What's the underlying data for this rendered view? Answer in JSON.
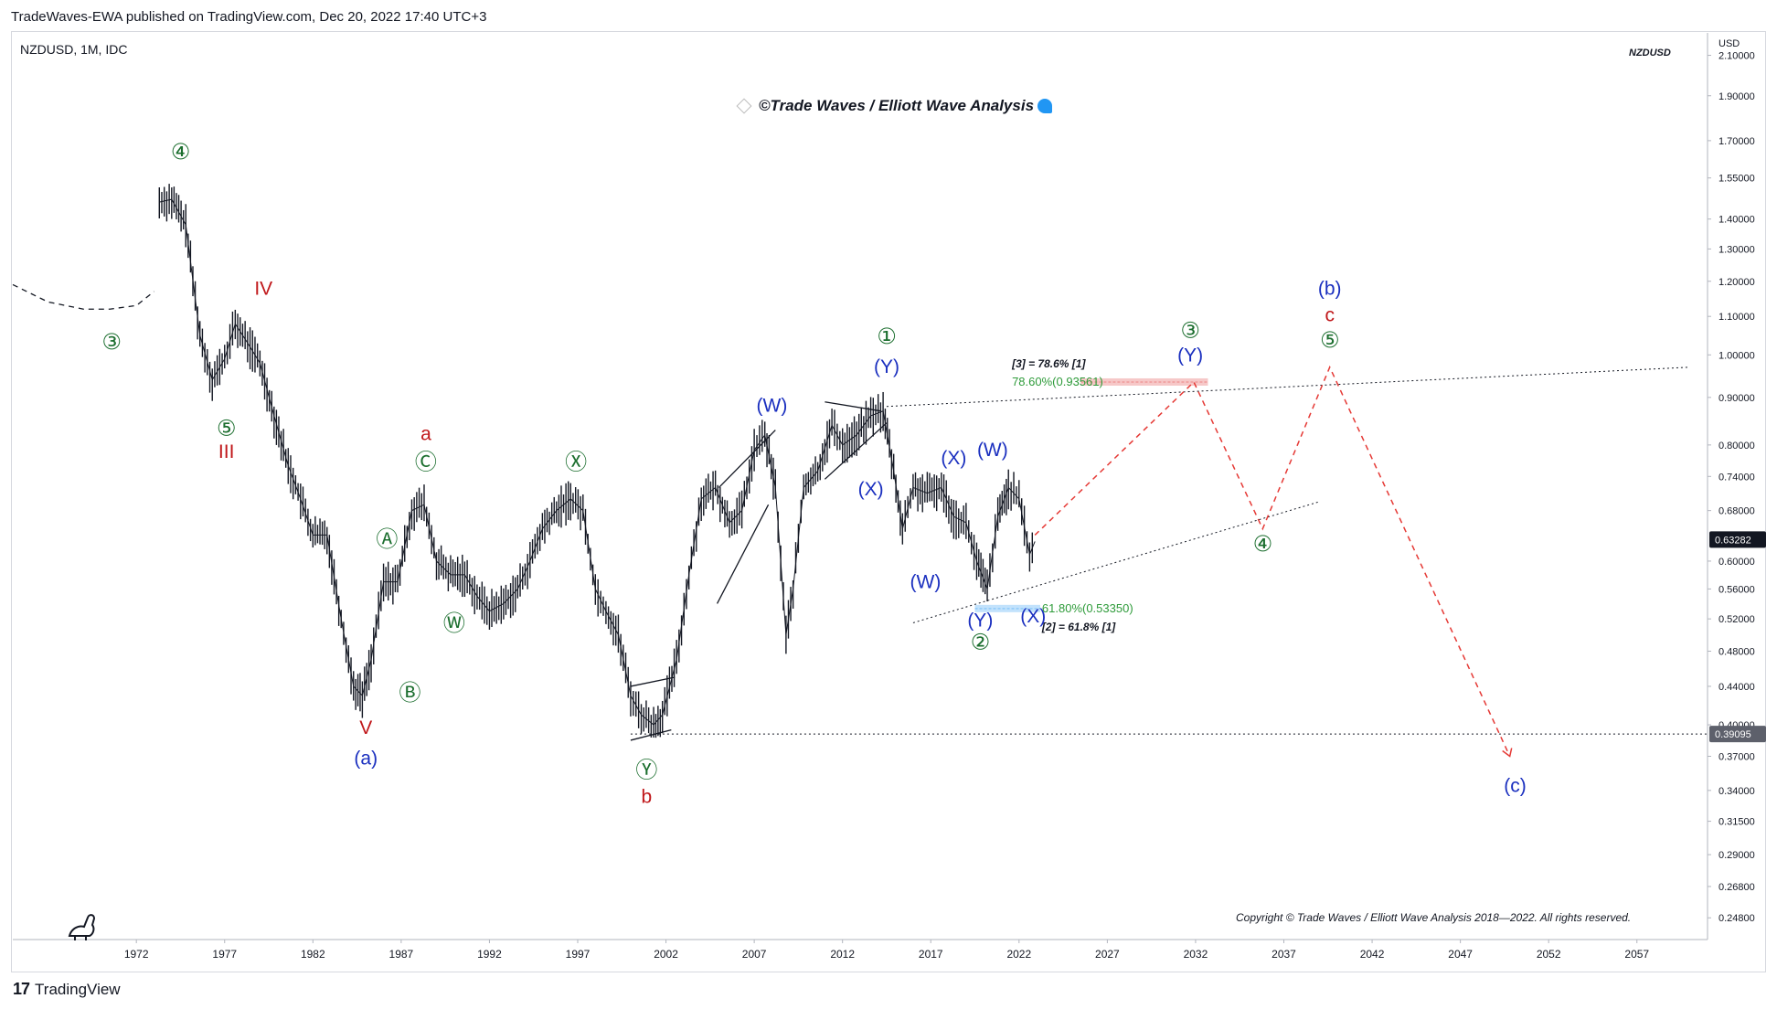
{
  "header": {
    "published_text": "TradeWaves-EWA published on TradingView.com, Dec 20, 2022 17:40 UTC+3"
  },
  "chart_header": {
    "symbol": "NZDUSD, 1M, IDC",
    "pane_tag": "NZDUSD",
    "currency": "USD"
  },
  "watermark": {
    "title": "©Trade Waves / Elliott Wave Analysis"
  },
  "copyright": "Copyright © Trade Waves / Elliott Wave Analysis 2018—2022. All rights reserved.",
  "footer": {
    "brand": "TradingView"
  },
  "colors": {
    "green": "#1b6e2e",
    "blue": "#1a2fbf",
    "red": "#c0171a",
    "dashed_projection": "#e53935",
    "candles": "#131722",
    "price_tag_bg": "#131722",
    "support_tag_bg": "#5d606b",
    "fib_green": "#2e9b3a"
  },
  "chart_data": {
    "type": "line",
    "title": "NZDUSD, 1M, IDC",
    "xlabel": "",
    "ylabel": "USD",
    "scale": "log",
    "x_ticks": [
      "1972",
      "1977",
      "1982",
      "1987",
      "1992",
      "1997",
      "2002",
      "2007",
      "2012",
      "2017",
      "2022",
      "2027",
      "2032",
      "2037",
      "2042",
      "2047",
      "2052",
      "2057"
    ],
    "y_ticks": [
      "2.10000",
      "1.90000",
      "1.70000",
      "1.55000",
      "1.40000",
      "1.30000",
      "1.20000",
      "1.10000",
      "1.00000",
      "0.90000",
      "0.80000",
      "0.74000",
      "0.68000",
      "0.60000",
      "0.56000",
      "0.52000",
      "0.48000",
      "0.44000",
      "0.40000",
      "0.37000",
      "0.34000",
      "0.31500",
      "0.29000",
      "0.26800",
      "0.24800"
    ],
    "ylim": [
      0.235,
      2.22
    ],
    "xlim": [
      1965,
      2061
    ],
    "price_tags": [
      {
        "label": "0.63282",
        "value": 0.63282
      },
      {
        "label": "0.39095",
        "value": 0.39095
      }
    ],
    "series": [
      {
        "name": "",
        "x": [
          1973.3,
          1974.0,
          1974.8,
          1975.6,
          1976.3,
          1977.0,
          1977.6,
          1978.3,
          1979.0,
          1979.8,
          1980.6,
          1981.3,
          1982.0,
          1982.8,
          1983.6,
          1984.3,
          1984.8,
          1985.3,
          1986.0,
          1986.8,
          1987.6,
          1988.3,
          1989.0,
          1989.8,
          1990.6,
          1991.3,
          1992.0,
          1992.8,
          1993.6,
          1994.3,
          1995.0,
          1995.8,
          1996.6,
          1997.3,
          1998.0,
          1998.6,
          1999.3,
          2000.0,
          2000.6,
          2001.3,
          2001.8,
          2002.6,
          2003.3,
          2004.0,
          2004.8,
          2005.6,
          2006.3,
          2007.0,
          2007.6,
          2008.2,
          2008.8,
          2009.2,
          2009.8,
          2010.6,
          2011.4,
          2012.0,
          2012.8,
          2013.6,
          2014.3,
          2014.9,
          2015.4,
          2016.0,
          2016.8,
          2017.6,
          2018.3,
          2019.0,
          2019.6,
          2020.2,
          2020.8,
          2021.4,
          2022.0,
          2022.6,
          2022.9
        ],
        "y": [
          1.46,
          1.47,
          1.38,
          1.05,
          0.94,
          0.99,
          1.08,
          1.03,
          0.98,
          0.86,
          0.76,
          0.7,
          0.64,
          0.64,
          0.52,
          0.44,
          0.43,
          0.47,
          0.57,
          0.57,
          0.68,
          0.69,
          0.6,
          0.58,
          0.58,
          0.55,
          0.53,
          0.54,
          0.56,
          0.6,
          0.65,
          0.68,
          0.7,
          0.68,
          0.56,
          0.53,
          0.5,
          0.43,
          0.41,
          0.4,
          0.41,
          0.47,
          0.58,
          0.7,
          0.72,
          0.66,
          0.68,
          0.79,
          0.82,
          0.72,
          0.5,
          0.56,
          0.72,
          0.75,
          0.84,
          0.8,
          0.82,
          0.86,
          0.87,
          0.75,
          0.65,
          0.72,
          0.71,
          0.72,
          0.67,
          0.66,
          0.6,
          0.56,
          0.67,
          0.72,
          0.7,
          0.61,
          0.63
        ]
      }
    ],
    "dashed_curve": {
      "x": [
        1965,
        1967,
        1969,
        1970.5,
        1972,
        1973
      ],
      "y": [
        1.19,
        1.14,
        1.12,
        1.12,
        1.13,
        1.17
      ]
    },
    "projection": {
      "x": [
        2022.9,
        2031.9,
        2035.8,
        2039.6,
        2049.8
      ],
      "y": [
        0.64,
        0.935,
        0.65,
        0.97,
        0.37
      ]
    },
    "trendlines": [
      {
        "x": [
          2014.5,
          2060
        ],
        "y": [
          0.88,
          0.97
        ],
        "style": "dotted"
      },
      {
        "x": [
          2016,
          2039
        ],
        "y": [
          0.515,
          0.695
        ],
        "style": "dotted"
      },
      {
        "x": [
          2000,
          2061
        ],
        "y": [
          0.39095,
          0.39095
        ],
        "style": "dotted"
      },
      {
        "x": [
          2005,
          2008.2
        ],
        "y": [
          0.72,
          0.83
        ],
        "style": "solid"
      },
      {
        "x": [
          2004.9,
          2007.8
        ],
        "y": [
          0.54,
          0.69
        ],
        "style": "solid"
      },
      {
        "x": [
          2011,
          2014.2
        ],
        "y": [
          0.89,
          0.87
        ],
        "style": "solid"
      },
      {
        "x": [
          2011,
          2014.5
        ],
        "y": [
          0.735,
          0.845
        ],
        "style": "solid"
      },
      {
        "x": [
          2000,
          2002.5
        ],
        "y": [
          0.44,
          0.45
        ],
        "style": "solid"
      },
      {
        "x": [
          2000,
          2002.3
        ],
        "y": [
          0.385,
          0.395
        ],
        "style": "solid"
      }
    ],
    "fib_zones": [
      {
        "x": [
          2025.5,
          2032.7
        ],
        "y": 0.935,
        "label": "78.60%(0.93561)",
        "note": "[3] = 78.6% [1]",
        "color": "#ef9a9a"
      },
      {
        "x": [
          2019.5,
          2023.2
        ],
        "y": 0.5335,
        "label": "61.80%(0.53350)",
        "note": "[2] = 61.8% [1]",
        "color": "#90caf9"
      }
    ],
    "wave_labels": [
      {
        "text": "④",
        "x": 1974.5,
        "y": 1.65,
        "color": "green"
      },
      {
        "text": "③",
        "x": 1970.6,
        "y": 1.03,
        "color": "green"
      },
      {
        "text": "IV",
        "x": 1979.2,
        "y": 1.175,
        "color": "red"
      },
      {
        "text": "⑤",
        "x": 1977.1,
        "y": 0.832,
        "color": "green"
      },
      {
        "text": "III",
        "x": 1977.1,
        "y": 0.785,
        "color": "red"
      },
      {
        "text": "a",
        "x": 1988.4,
        "y": 0.82,
        "color": "red"
      },
      {
        "text": "Ⓒ",
        "x": 1988.4,
        "y": 0.765,
        "color": "green"
      },
      {
        "text": "Ⓐ",
        "x": 1986.2,
        "y": 0.632,
        "color": "green"
      },
      {
        "text": "Ⓦ",
        "x": 1990.0,
        "y": 0.513,
        "color": "green"
      },
      {
        "text": "Ⓑ",
        "x": 1987.5,
        "y": 0.432,
        "color": "green"
      },
      {
        "text": "V",
        "x": 1985.0,
        "y": 0.396,
        "color": "red"
      },
      {
        "text": "(a)",
        "x": 1985.0,
        "y": 0.367,
        "color": "blue"
      },
      {
        "text": "Ⓧ",
        "x": 1996.9,
        "y": 0.765,
        "color": "green"
      },
      {
        "text": "Ⓨ",
        "x": 2000.9,
        "y": 0.357,
        "color": "green"
      },
      {
        "text": "b",
        "x": 2000.9,
        "y": 0.334,
        "color": "red"
      },
      {
        "text": "(W)",
        "x": 2008.0,
        "y": 0.88,
        "color": "blue"
      },
      {
        "text": "①",
        "x": 2014.5,
        "y": 1.045,
        "color": "green"
      },
      {
        "text": "(Y)",
        "x": 2014.5,
        "y": 0.968,
        "color": "blue"
      },
      {
        "text": "(X)",
        "x": 2013.6,
        "y": 0.715,
        "color": "blue"
      },
      {
        "text": "(X)",
        "x": 2018.3,
        "y": 0.772,
        "color": "blue"
      },
      {
        "text": "(W)",
        "x": 2020.5,
        "y": 0.788,
        "color": "blue"
      },
      {
        "text": "(W)",
        "x": 2016.7,
        "y": 0.568,
        "color": "blue"
      },
      {
        "text": "(Y)",
        "x": 2019.8,
        "y": 0.517,
        "color": "blue"
      },
      {
        "text": "(X)",
        "x": 2022.8,
        "y": 0.522,
        "color": "blue"
      },
      {
        "text": "②",
        "x": 2019.8,
        "y": 0.49,
        "color": "green"
      },
      {
        "text": "③",
        "x": 2031.7,
        "y": 1.06,
        "color": "green"
      },
      {
        "text": "(Y)",
        "x": 2031.7,
        "y": 0.996,
        "color": "blue"
      },
      {
        "text": "④",
        "x": 2035.8,
        "y": 0.625,
        "color": "green"
      },
      {
        "text": "(b)",
        "x": 2039.6,
        "y": 1.175,
        "color": "blue"
      },
      {
        "text": "c",
        "x": 2039.6,
        "y": 1.1,
        "color": "red"
      },
      {
        "text": "⑤",
        "x": 2039.6,
        "y": 1.035,
        "color": "green"
      },
      {
        "text": "(c)",
        "x": 2050.1,
        "y": 0.343,
        "color": "blue"
      }
    ]
  }
}
